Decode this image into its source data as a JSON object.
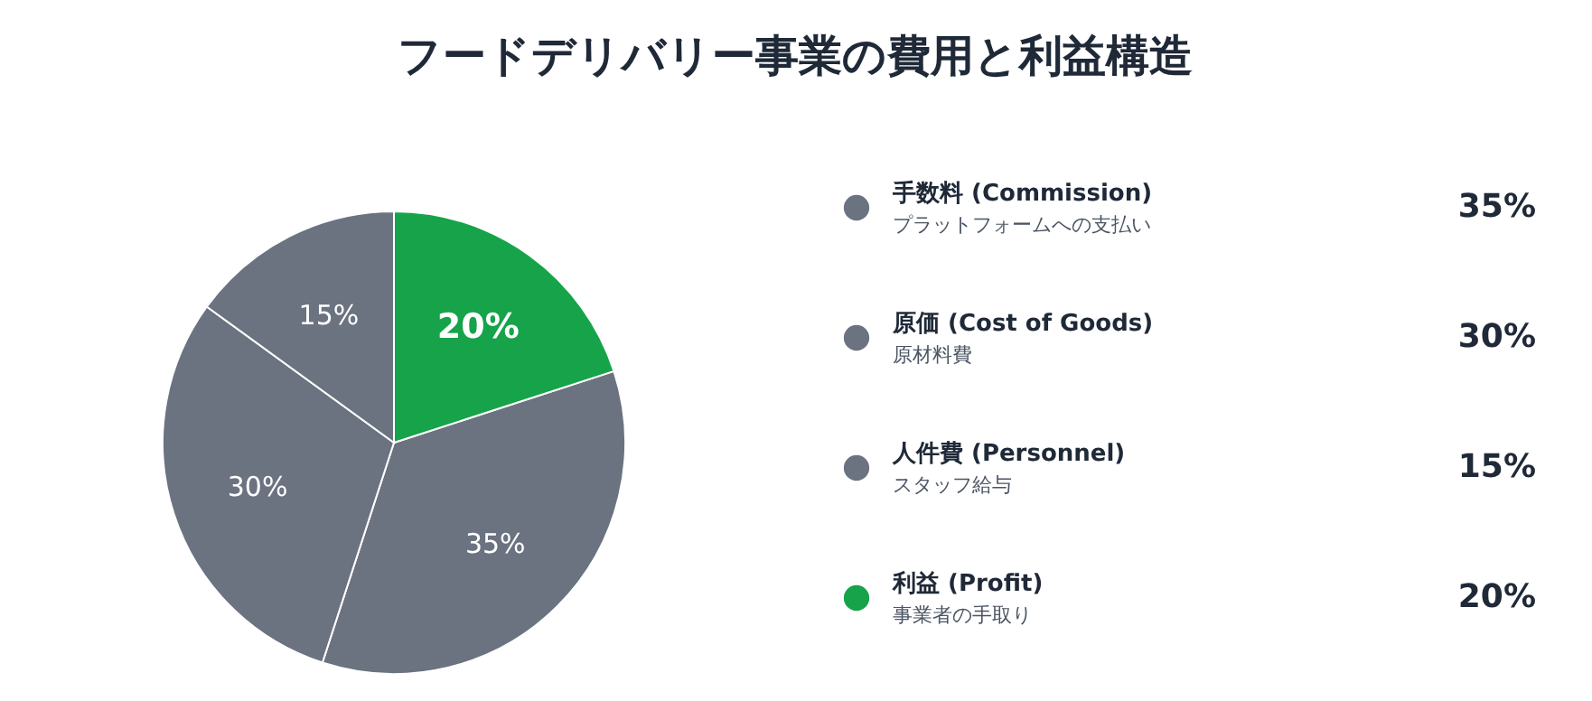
{
  "chart_data": {
    "type": "pie",
    "title": "フードデリバリー事業の費用と利益構造",
    "categories": [
      "手数料 (Commission)",
      "原価 (Cost of Goods)",
      "人件費 (Personnel)",
      "利益 (Profit)"
    ],
    "values": [
      35,
      30,
      15,
      20
    ],
    "colors": [
      "#6b7280",
      "#6b7280",
      "#6b7280",
      "#16a34a"
    ],
    "annotations": [
      "プラットフォームへの支払い",
      "原材料費",
      "スタッフ給与",
      "事業者の手取り"
    ],
    "value_labels": [
      "35%",
      "30%",
      "15%",
      "20%"
    ],
    "legend": "right"
  }
}
